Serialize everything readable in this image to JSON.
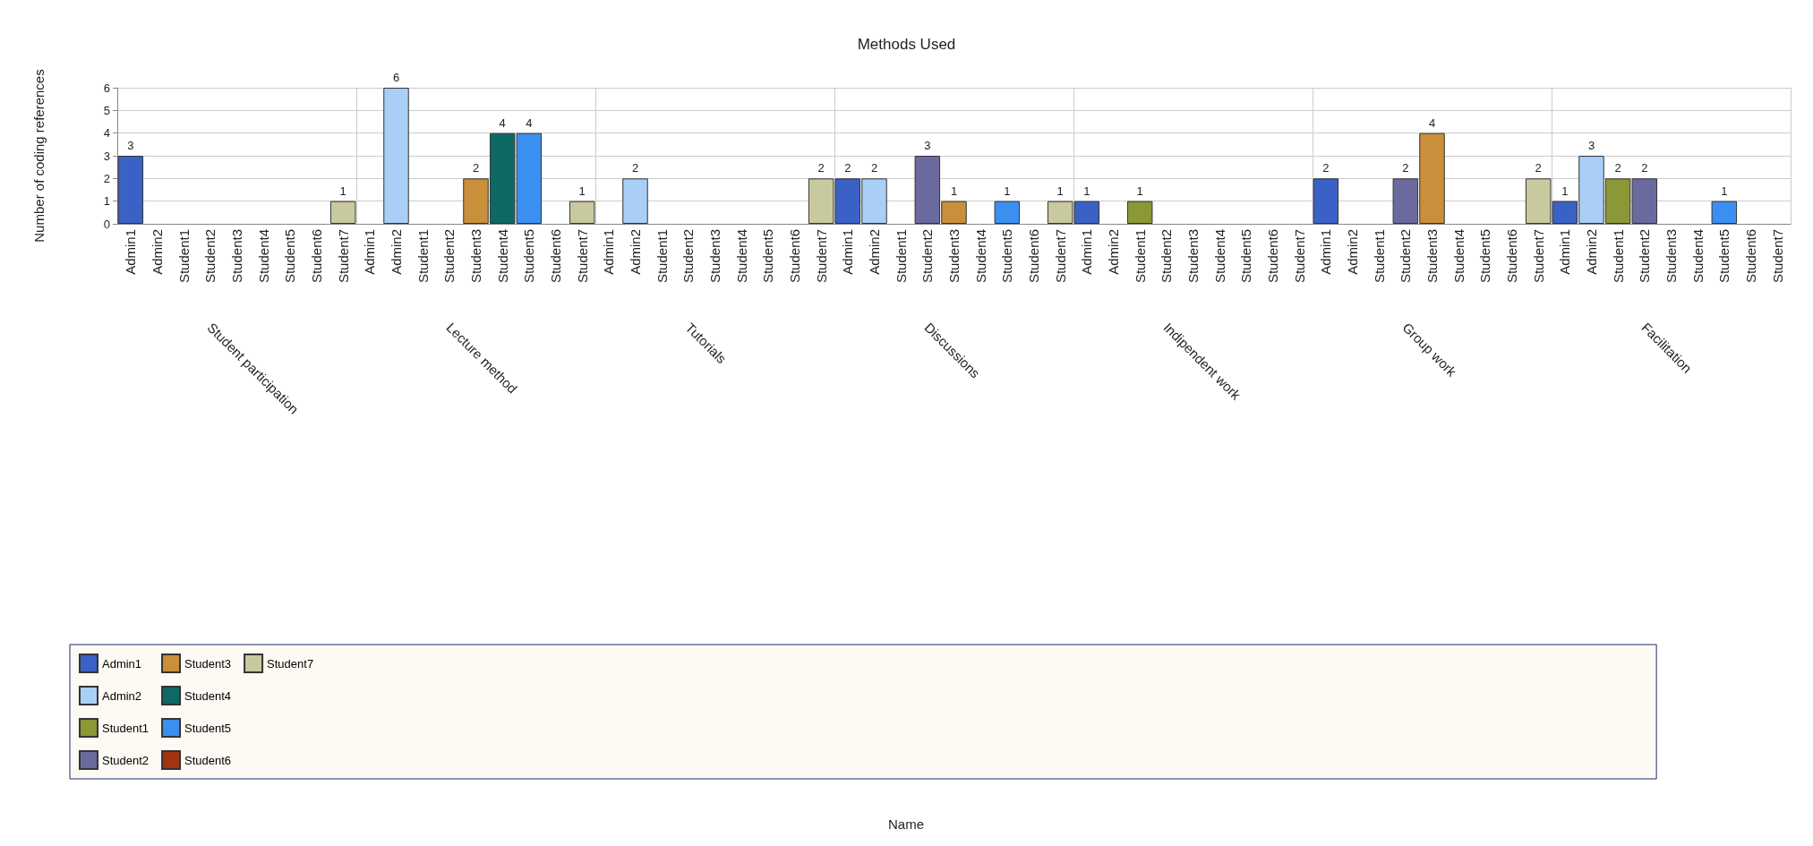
{
  "chart_data": {
    "type": "bar",
    "title": "Methods Used",
    "ylabel": "Number of coding references",
    "annotations": [
      "Student participation",
      "Lecture method",
      "Tutorials",
      "Discussions",
      "Indipendent work",
      "Group work",
      "Facilitation",
      "Name"
    ],
    "categories": [
      "Admin1",
      "Admin2",
      "Student1",
      "Student2",
      "Student3",
      "Student4",
      "Student5",
      "Student6",
      "Student7",
      "Admin1",
      "Admin2",
      "Student1",
      "Student2",
      "Student3",
      "Student4",
      "Student5",
      "Student6",
      "Student7",
      "Admin1",
      "Admin2",
      "Student1",
      "Student2",
      "Student3",
      "Student4",
      "Student5",
      "Student6",
      "Student7",
      "Admin1",
      "Admin2",
      "Student1",
      "Student2",
      "Student3",
      "Student4",
      "Student5",
      "Student6",
      "Student7",
      "Admin1",
      "Admin2",
      "Student1",
      "Student2",
      "Student3",
      "Student4",
      "Student5",
      "Student6",
      "Student7",
      "Admin1",
      "Admin2",
      "Student1",
      "Student2",
      "Student3",
      "Student4",
      "Student5",
      "Student6",
      "Student7",
      "Admin1",
      "Admin2",
      "Student1",
      "Student2",
      "Student3",
      "Student4",
      "Student5",
      "Student6",
      "Student7"
    ],
    "series": [
      {
        "name": "Admin1",
        "color": "#3a62c6",
        "values": [
          3,
          null,
          null,
          null,
          null,
          null,
          null,
          null,
          null,
          null,
          null,
          null,
          null,
          null,
          null,
          null,
          null,
          null,
          null,
          null,
          null,
          null,
          null,
          null,
          null,
          null,
          null,
          2,
          null,
          null,
          null,
          null,
          null,
          null,
          null,
          null,
          1,
          null,
          null,
          null,
          null,
          null,
          null,
          null,
          null,
          2,
          null,
          null,
          null,
          null,
          null,
          null,
          null,
          null,
          1,
          null,
          null,
          null,
          null,
          null,
          null,
          null,
          null
        ]
      },
      {
        "name": "Admin2",
        "color": "#a9cff6",
        "values": [
          null,
          null,
          null,
          null,
          null,
          null,
          null,
          null,
          null,
          null,
          6,
          null,
          null,
          null,
          null,
          null,
          null,
          null,
          null,
          2,
          null,
          null,
          null,
          null,
          null,
          null,
          null,
          null,
          2,
          null,
          null,
          null,
          null,
          null,
          null,
          null,
          null,
          null,
          null,
          null,
          null,
          null,
          null,
          null,
          null,
          null,
          null,
          null,
          null,
          null,
          null,
          null,
          null,
          null,
          null,
          3,
          null,
          null,
          null,
          null,
          null,
          null,
          null
        ]
      },
      {
        "name": "Student1",
        "color": "#8c9736",
        "values": [
          null,
          null,
          null,
          null,
          null,
          null,
          null,
          null,
          null,
          null,
          null,
          null,
          null,
          null,
          null,
          null,
          null,
          null,
          null,
          null,
          null,
          null,
          null,
          null,
          null,
          null,
          null,
          null,
          null,
          null,
          null,
          null,
          null,
          null,
          null,
          null,
          null,
          null,
          1,
          null,
          null,
          null,
          null,
          null,
          null,
          null,
          null,
          null,
          null,
          null,
          null,
          null,
          null,
          null,
          null,
          null,
          2,
          null,
          null,
          null,
          null,
          null,
          null
        ]
      },
      {
        "name": "Student2",
        "color": "#6b6a9f",
        "values": [
          null,
          null,
          null,
          null,
          null,
          null,
          null,
          null,
          null,
          null,
          null,
          null,
          null,
          null,
          null,
          null,
          null,
          null,
          null,
          null,
          null,
          null,
          null,
          null,
          null,
          null,
          null,
          null,
          null,
          null,
          3,
          null,
          null,
          null,
          null,
          null,
          null,
          null,
          null,
          null,
          null,
          null,
          null,
          null,
          null,
          null,
          null,
          null,
          2,
          null,
          null,
          null,
          null,
          null,
          null,
          null,
          null,
          2,
          null,
          null,
          null,
          null,
          null
        ]
      },
      {
        "name": "Student3",
        "color": "#c98f3a",
        "values": [
          null,
          null,
          null,
          null,
          null,
          null,
          null,
          null,
          null,
          null,
          null,
          null,
          null,
          2,
          null,
          null,
          null,
          null,
          null,
          null,
          null,
          null,
          null,
          null,
          null,
          null,
          null,
          null,
          null,
          null,
          null,
          1,
          null,
          null,
          null,
          null,
          null,
          null,
          null,
          null,
          null,
          null,
          null,
          null,
          null,
          null,
          null,
          null,
          null,
          4,
          null,
          null,
          null,
          null,
          null,
          null,
          null,
          null,
          null,
          null,
          null,
          null,
          null
        ]
      },
      {
        "name": "Student4",
        "color": "#0e6864",
        "values": [
          null,
          null,
          null,
          null,
          null,
          null,
          null,
          null,
          null,
          null,
          null,
          null,
          null,
          null,
          4,
          null,
          null,
          null,
          null,
          null,
          null,
          null,
          null,
          null,
          null,
          null,
          null,
          null,
          null,
          null,
          null,
          null,
          null,
          null,
          null,
          null,
          null,
          null,
          null,
          null,
          null,
          null,
          null,
          null,
          null,
          null,
          null,
          null,
          null,
          null,
          null,
          null,
          null,
          null,
          null,
          null,
          null,
          null,
          null,
          null,
          null,
          null,
          null
        ]
      },
      {
        "name": "Student5",
        "color": "#3b8ff0",
        "values": [
          null,
          null,
          null,
          null,
          null,
          null,
          null,
          null,
          null,
          null,
          null,
          null,
          null,
          null,
          null,
          4,
          null,
          null,
          null,
          null,
          null,
          null,
          null,
          null,
          null,
          null,
          null,
          null,
          null,
          null,
          null,
          null,
          null,
          1,
          null,
          null,
          null,
          null,
          null,
          null,
          null,
          null,
          null,
          null,
          null,
          null,
          null,
          null,
          null,
          null,
          null,
          null,
          null,
          null,
          null,
          null,
          null,
          null,
          null,
          null,
          1,
          null,
          null
        ]
      },
      {
        "name": "Student6",
        "color": "#a23411",
        "values": [
          null,
          null,
          null,
          null,
          null,
          null,
          null,
          null,
          null,
          null,
          null,
          null,
          null,
          null,
          null,
          null,
          null,
          null,
          null,
          null,
          null,
          null,
          null,
          null,
          null,
          null,
          null,
          null,
          null,
          null,
          null,
          null,
          null,
          null,
          null,
          null,
          null,
          null,
          null,
          null,
          null,
          null,
          null,
          null,
          null,
          null,
          null,
          null,
          null,
          null,
          null,
          null,
          null,
          null,
          null,
          null,
          null,
          null,
          null,
          null,
          null,
          null,
          null
        ]
      },
      {
        "name": "Student7",
        "color": "#c9c9a0",
        "values": [
          null,
          null,
          null,
          null,
          null,
          null,
          null,
          null,
          1,
          null,
          null,
          null,
          null,
          null,
          null,
          null,
          null,
          1,
          null,
          null,
          null,
          null,
          null,
          null,
          null,
          null,
          2,
          null,
          null,
          null,
          null,
          null,
          null,
          null,
          null,
          1,
          null,
          null,
          null,
          null,
          null,
          null,
          null,
          null,
          null,
          null,
          null,
          null,
          null,
          null,
          null,
          null,
          null,
          2,
          null,
          null,
          null,
          null,
          null,
          null,
          null,
          null,
          null
        ]
      }
    ],
    "ylim": [
      0,
      6
    ],
    "yticks": [
      0,
      1,
      2,
      3,
      4,
      5,
      6
    ],
    "grid": true,
    "legend": "bottom left",
    "data_labels": true
  }
}
